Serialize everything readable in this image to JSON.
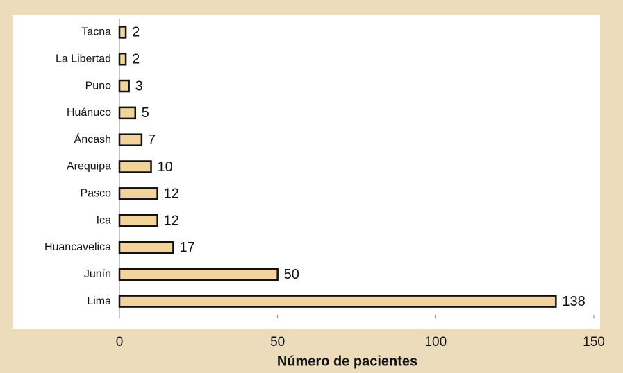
{
  "chart_data": {
    "type": "bar",
    "orientation": "horizontal",
    "x_label": "Número de pacientes",
    "categories": [
      "Tacna",
      "La Libertad",
      "Puno",
      "Huánuco",
      "Áncash",
      "Arequipa",
      "Pasco",
      "Ica",
      "Huancavelica",
      "Junín",
      "Lima"
    ],
    "values": [
      2,
      2,
      3,
      5,
      7,
      10,
      12,
      12,
      17,
      50,
      138
    ],
    "color": "#f3d39c",
    "xlim": [
      0,
      150
    ],
    "xticks": [
      0,
      50,
      100,
      150
    ]
  }
}
